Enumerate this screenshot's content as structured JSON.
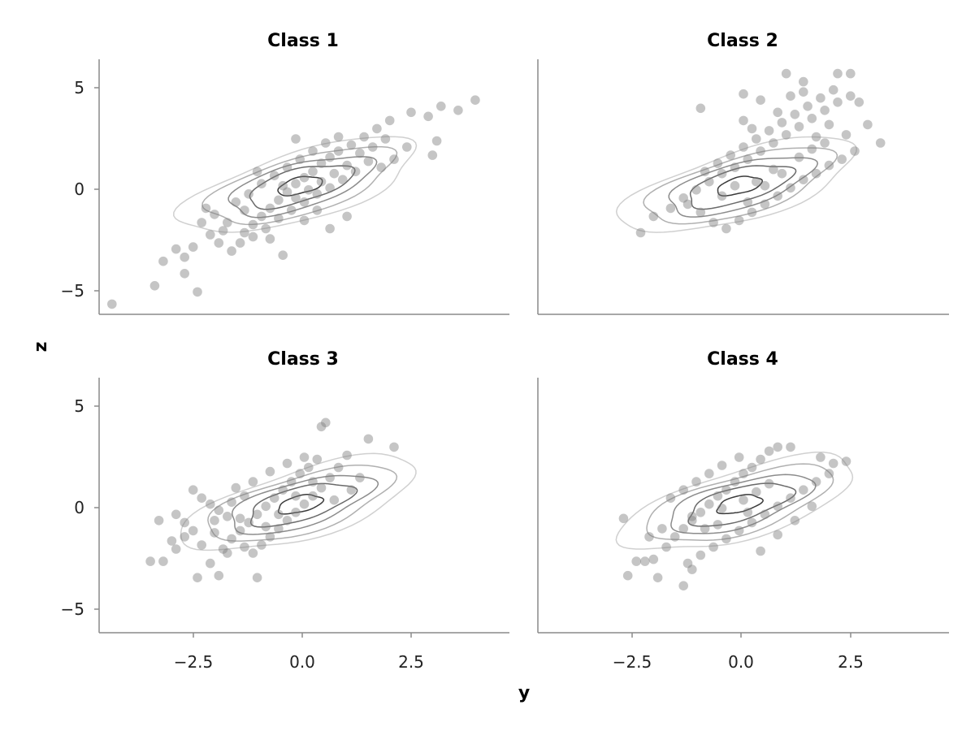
{
  "chart_data": {
    "type": "scatter",
    "layout": "2x2 facet grid with shared axes",
    "xlabel": "y",
    "ylabel": "z",
    "xlim": [
      -4.6,
      5.0
    ],
    "ylim": [
      -6.1,
      6.4
    ],
    "xticks": [
      -2.5,
      0.0,
      2.5
    ],
    "xtick_labels": [
      "−2.5",
      "0.0",
      "2.5"
    ],
    "yticks": [
      -5,
      0,
      5
    ],
    "ytick_labels": [
      "−5",
      "0",
      "5"
    ],
    "point_color": "#7f7f7f",
    "contour_colors": [
      "#d0d0d0",
      "#b0b0b0",
      "#8c8c8c",
      "#6a6a6a",
      "#3a3a3a"
    ],
    "contours": {
      "center": [
        0.1,
        0.2
      ],
      "angle_deg": 38,
      "levels": [
        {
          "a": 3.3,
          "b": 1.45,
          "color": "#d0d0d0"
        },
        {
          "a": 2.6,
          "b": 1.2,
          "color": "#b0b0b0"
        },
        {
          "a": 2.0,
          "b": 0.95,
          "color": "#8c8c8c"
        },
        {
          "a": 1.45,
          "b": 0.7,
          "color": "#6a6a6a"
        },
        {
          "a": 0.6,
          "b": 0.35,
          "color": "#3a3a3a"
        }
      ]
    },
    "panels": [
      {
        "title": "Class 1",
        "points": [
          [
            -4.3,
            -5.6
          ],
          [
            -3.3,
            -4.7
          ],
          [
            -2.3,
            -5.0
          ],
          [
            -2.6,
            -4.1
          ],
          [
            -3.1,
            -3.5
          ],
          [
            -2.8,
            -2.9
          ],
          [
            -2.6,
            -3.3
          ],
          [
            -2.4,
            -2.8
          ],
          [
            -2.0,
            -2.2
          ],
          [
            -1.8,
            -2.6
          ],
          [
            -1.5,
            -3.0
          ],
          [
            -1.2,
            -2.1
          ],
          [
            -1.0,
            -1.7
          ],
          [
            -0.8,
            -1.3
          ],
          [
            -0.6,
            -0.9
          ],
          [
            -0.4,
            -0.5
          ],
          [
            -0.2,
            -0.1
          ],
          [
            0.0,
            0.3
          ],
          [
            0.2,
            0.6
          ],
          [
            0.4,
            0.9
          ],
          [
            0.6,
            1.3
          ],
          [
            0.8,
            1.6
          ],
          [
            1.0,
            1.9
          ],
          [
            1.3,
            2.2
          ],
          [
            1.6,
            2.6
          ],
          [
            1.9,
            3.0
          ],
          [
            2.2,
            3.4
          ],
          [
            2.7,
            3.8
          ],
          [
            3.1,
            3.6
          ],
          [
            3.4,
            4.1
          ],
          [
            3.8,
            3.9
          ],
          [
            4.2,
            4.4
          ],
          [
            3.3,
            2.4
          ],
          [
            3.2,
            1.7
          ],
          [
            2.6,
            2.1
          ],
          [
            2.3,
            1.5
          ],
          [
            2.0,
            1.1
          ],
          [
            1.7,
            1.4
          ],
          [
            1.4,
            0.9
          ],
          [
            1.1,
            0.5
          ],
          [
            0.8,
            0.1
          ],
          [
            0.5,
            -0.2
          ],
          [
            0.2,
            -0.6
          ],
          [
            -0.1,
            -1.0
          ],
          [
            -0.4,
            -1.4
          ],
          [
            -0.7,
            -1.9
          ],
          [
            -1.0,
            -2.3
          ],
          [
            -1.3,
            -2.6
          ],
          [
            -1.6,
            -1.6
          ],
          [
            -1.9,
            -1.2
          ],
          [
            -2.1,
            -0.9
          ],
          [
            -1.4,
            -0.6
          ],
          [
            -1.1,
            -0.2
          ],
          [
            -0.8,
            0.3
          ],
          [
            -0.5,
            0.7
          ],
          [
            -0.2,
            1.1
          ],
          [
            0.1,
            1.5
          ],
          [
            0.4,
            1.9
          ],
          [
            0.7,
            2.3
          ],
          [
            1.0,
            2.6
          ],
          [
            0.3,
            0.0
          ],
          [
            0.0,
            -0.4
          ],
          [
            -0.3,
            0.2
          ],
          [
            0.6,
            0.4
          ],
          [
            0.9,
            0.8
          ],
          [
            1.2,
            1.2
          ],
          [
            1.5,
            1.8
          ],
          [
            1.8,
            2.1
          ],
          [
            2.1,
            2.5
          ],
          [
            0.5,
            -1.0
          ],
          [
            0.2,
            -1.5
          ],
          [
            -0.6,
            -2.4
          ],
          [
            -0.3,
            -3.2
          ],
          [
            0.8,
            -1.9
          ],
          [
            1.2,
            -1.3
          ],
          [
            -1.7,
            -2.0
          ],
          [
            -2.2,
            -1.6
          ],
          [
            -1.2,
            -1.0
          ],
          [
            0.0,
            2.5
          ],
          [
            -0.9,
            0.9
          ]
        ]
      },
      {
        "title": "Class 2",
        "points": [
          [
            -2.2,
            -2.1
          ],
          [
            -1.9,
            -1.3
          ],
          [
            -1.5,
            -0.9
          ],
          [
            -1.2,
            -0.4
          ],
          [
            -0.9,
            0.0
          ],
          [
            -0.6,
            0.4
          ],
          [
            -0.3,
            0.8
          ],
          [
            0.0,
            1.1
          ],
          [
            0.3,
            1.5
          ],
          [
            0.6,
            1.9
          ],
          [
            0.9,
            2.3
          ],
          [
            1.2,
            2.7
          ],
          [
            1.5,
            3.1
          ],
          [
            1.8,
            3.5
          ],
          [
            2.1,
            3.9
          ],
          [
            2.4,
            4.3
          ],
          [
            2.7,
            4.6
          ],
          [
            1.2,
            5.7
          ],
          [
            1.6,
            5.3
          ],
          [
            2.4,
            5.7
          ],
          [
            2.7,
            5.7
          ],
          [
            2.9,
            4.3
          ],
          [
            3.1,
            3.2
          ],
          [
            3.4,
            2.3
          ],
          [
            2.8,
            1.9
          ],
          [
            2.5,
            1.5
          ],
          [
            2.2,
            1.2
          ],
          [
            1.9,
            0.8
          ],
          [
            1.6,
            0.5
          ],
          [
            1.3,
            0.1
          ],
          [
            1.0,
            -0.3
          ],
          [
            0.7,
            -0.7
          ],
          [
            0.4,
            -1.1
          ],
          [
            0.1,
            -1.5
          ],
          [
            -0.2,
            -1.9
          ],
          [
            -0.5,
            -1.6
          ],
          [
            -0.8,
            -1.1
          ],
          [
            -1.1,
            -0.7
          ],
          [
            -0.7,
            0.9
          ],
          [
            -0.4,
            1.3
          ],
          [
            -0.1,
            1.7
          ],
          [
            0.2,
            2.1
          ],
          [
            0.5,
            2.5
          ],
          [
            0.8,
            2.9
          ],
          [
            1.1,
            3.3
          ],
          [
            1.4,
            3.7
          ],
          [
            1.7,
            4.1
          ],
          [
            2.0,
            4.5
          ],
          [
            2.3,
            4.9
          ],
          [
            -0.8,
            4.0
          ],
          [
            0.2,
            3.4
          ],
          [
            0.4,
            3.0
          ],
          [
            0.6,
            4.4
          ],
          [
            1.0,
            3.8
          ],
          [
            1.3,
            4.6
          ],
          [
            1.9,
            2.6
          ],
          [
            2.2,
            3.2
          ],
          [
            2.6,
            2.7
          ],
          [
            0.9,
            1.0
          ],
          [
            0.5,
            0.4
          ],
          [
            0.0,
            0.2
          ],
          [
            -0.3,
            -0.3
          ],
          [
            0.3,
            -0.6
          ],
          [
            0.7,
            0.2
          ],
          [
            1.1,
            0.8
          ],
          [
            1.5,
            1.6
          ],
          [
            1.8,
            2.0
          ],
          [
            2.1,
            2.3
          ],
          [
            0.2,
            4.7
          ],
          [
            1.6,
            4.8
          ]
        ]
      },
      {
        "title": "Class 3",
        "points": [
          [
            -3.4,
            -2.6
          ],
          [
            -3.1,
            -2.6
          ],
          [
            -2.8,
            -2.0
          ],
          [
            -2.6,
            -1.4
          ],
          [
            -2.4,
            -1.1
          ],
          [
            -2.3,
            -3.4
          ],
          [
            -2.0,
            -2.7
          ],
          [
            -1.8,
            -3.3
          ],
          [
            -1.7,
            -2.0
          ],
          [
            -1.5,
            -1.5
          ],
          [
            -1.3,
            -1.1
          ],
          [
            -1.1,
            -0.7
          ],
          [
            -0.9,
            -0.3
          ],
          [
            -0.7,
            0.1
          ],
          [
            -0.5,
            0.5
          ],
          [
            -0.3,
            0.9
          ],
          [
            -0.1,
            1.3
          ],
          [
            0.1,
            1.7
          ],
          [
            0.3,
            2.0
          ],
          [
            0.5,
            2.4
          ],
          [
            0.6,
            4.0
          ],
          [
            0.7,
            4.2
          ],
          [
            1.7,
            3.4
          ],
          [
            2.3,
            3.0
          ],
          [
            1.2,
            2.6
          ],
          [
            1.0,
            2.0
          ],
          [
            0.8,
            1.5
          ],
          [
            0.6,
            1.0
          ],
          [
            0.4,
            0.6
          ],
          [
            0.2,
            0.2
          ],
          [
            0.0,
            -0.2
          ],
          [
            -0.2,
            -0.6
          ],
          [
            -0.4,
            -1.0
          ],
          [
            -0.6,
            -1.4
          ],
          [
            -0.8,
            -1.8
          ],
          [
            -1.0,
            -2.2
          ],
          [
            -0.9,
            -3.4
          ],
          [
            -1.6,
            -0.4
          ],
          [
            -1.8,
            -0.1
          ],
          [
            -2.0,
            0.2
          ],
          [
            -2.2,
            0.5
          ],
          [
            -2.4,
            0.9
          ],
          [
            -2.6,
            -0.7
          ],
          [
            -2.8,
            -0.3
          ],
          [
            -1.2,
            0.6
          ],
          [
            -1.4,
            1.0
          ],
          [
            -1.0,
            1.3
          ],
          [
            -0.6,
            1.8
          ],
          [
            -0.2,
            2.2
          ],
          [
            0.2,
            2.5
          ],
          [
            -3.2,
            -0.6
          ],
          [
            -2.9,
            -1.6
          ],
          [
            -1.9,
            -1.2
          ],
          [
            -1.6,
            -2.2
          ],
          [
            -1.2,
            -1.9
          ],
          [
            -0.7,
            -0.9
          ],
          [
            -0.4,
            -0.3
          ],
          [
            0.0,
            0.6
          ],
          [
            0.4,
            1.3
          ],
          [
            0.9,
            0.4
          ],
          [
            1.3,
            0.9
          ],
          [
            1.5,
            1.5
          ],
          [
            -1.5,
            0.3
          ],
          [
            -1.9,
            -0.6
          ],
          [
            -2.2,
            -1.8
          ],
          [
            -1.3,
            -0.5
          ]
        ]
      },
      {
        "title": "Class 4",
        "points": [
          [
            -2.5,
            -3.3
          ],
          [
            -2.6,
            -0.5
          ],
          [
            -2.3,
            -2.6
          ],
          [
            -2.1,
            -2.6
          ],
          [
            -1.9,
            -2.5
          ],
          [
            -1.8,
            -3.4
          ],
          [
            -1.6,
            -1.9
          ],
          [
            -1.4,
            -1.4
          ],
          [
            -1.2,
            -1.0
          ],
          [
            -1.0,
            -0.6
          ],
          [
            -0.8,
            -0.2
          ],
          [
            -0.6,
            0.2
          ],
          [
            -0.4,
            0.6
          ],
          [
            -0.2,
            0.9
          ],
          [
            0.0,
            1.3
          ],
          [
            0.2,
            1.7
          ],
          [
            0.4,
            2.0
          ],
          [
            0.6,
            2.4
          ],
          [
            0.8,
            2.8
          ],
          [
            1.0,
            3.0
          ],
          [
            1.3,
            3.0
          ],
          [
            2.0,
            2.5
          ],
          [
            2.3,
            2.2
          ],
          [
            2.6,
            2.3
          ],
          [
            2.2,
            1.7
          ],
          [
            1.9,
            1.3
          ],
          [
            1.6,
            0.9
          ],
          [
            1.3,
            0.5
          ],
          [
            1.0,
            0.1
          ],
          [
            0.7,
            -0.3
          ],
          [
            0.4,
            -0.7
          ],
          [
            0.1,
            -1.1
          ],
          [
            -0.2,
            -1.5
          ],
          [
            -0.5,
            -1.9
          ],
          [
            -0.8,
            -2.3
          ],
          [
            -1.1,
            -2.7
          ],
          [
            -1.2,
            -3.8
          ],
          [
            -1.0,
            -3.0
          ],
          [
            0.6,
            -2.1
          ],
          [
            1.0,
            -1.3
          ],
          [
            1.4,
            -0.6
          ],
          [
            1.8,
            0.1
          ],
          [
            -1.5,
            0.5
          ],
          [
            -1.2,
            0.9
          ],
          [
            -0.9,
            1.3
          ],
          [
            -0.6,
            1.7
          ],
          [
            -0.3,
            2.1
          ],
          [
            0.1,
            2.5
          ],
          [
            -0.3,
            0.0
          ],
          [
            0.2,
            0.4
          ],
          [
            0.5,
            0.8
          ],
          [
            0.8,
            1.2
          ],
          [
            -0.7,
            -1.0
          ],
          [
            -1.0,
            -0.4
          ],
          [
            -1.7,
            -1.0
          ],
          [
            -2.0,
            -1.4
          ],
          [
            -0.4,
            -0.8
          ],
          [
            0.3,
            -0.2
          ]
        ]
      }
    ]
  }
}
